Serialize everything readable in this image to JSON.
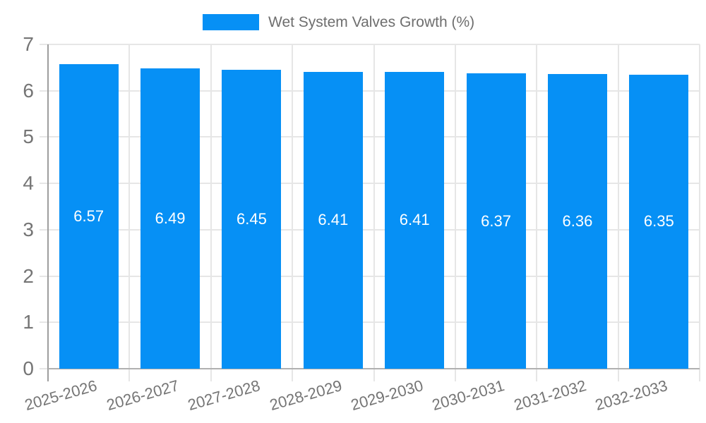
{
  "chart_data": {
    "type": "bar",
    "title": "",
    "legend": "Wet System Valves Growth (%)",
    "legend_position": "top",
    "categories": [
      "2025-2026",
      "2026-2027",
      "2027-2028",
      "2028-2029",
      "2029-2030",
      "2030-2031",
      "2031-2032",
      "2032-2033"
    ],
    "values": [
      6.57,
      6.49,
      6.45,
      6.41,
      6.41,
      6.37,
      6.36,
      6.35
    ],
    "value_labels": [
      "6.57",
      "6.49",
      "6.45",
      "6.41",
      "6.41",
      "6.37",
      "6.36",
      "6.35"
    ],
    "xlabel": "",
    "ylabel": "",
    "ylim": [
      0,
      7
    ],
    "yticks": [
      0,
      1,
      2,
      3,
      4,
      5,
      6,
      7
    ],
    "grid": true,
    "colors": {
      "bar": "#0690f5",
      "bar_label": "#ffffff",
      "axis_text": "#757575",
      "legend_text": "#6e6e6e",
      "gridline": "#e6e6e6",
      "axis_line": "#9e9e9e",
      "baseline": "#b0b0b0",
      "background": "#ffffff"
    }
  }
}
